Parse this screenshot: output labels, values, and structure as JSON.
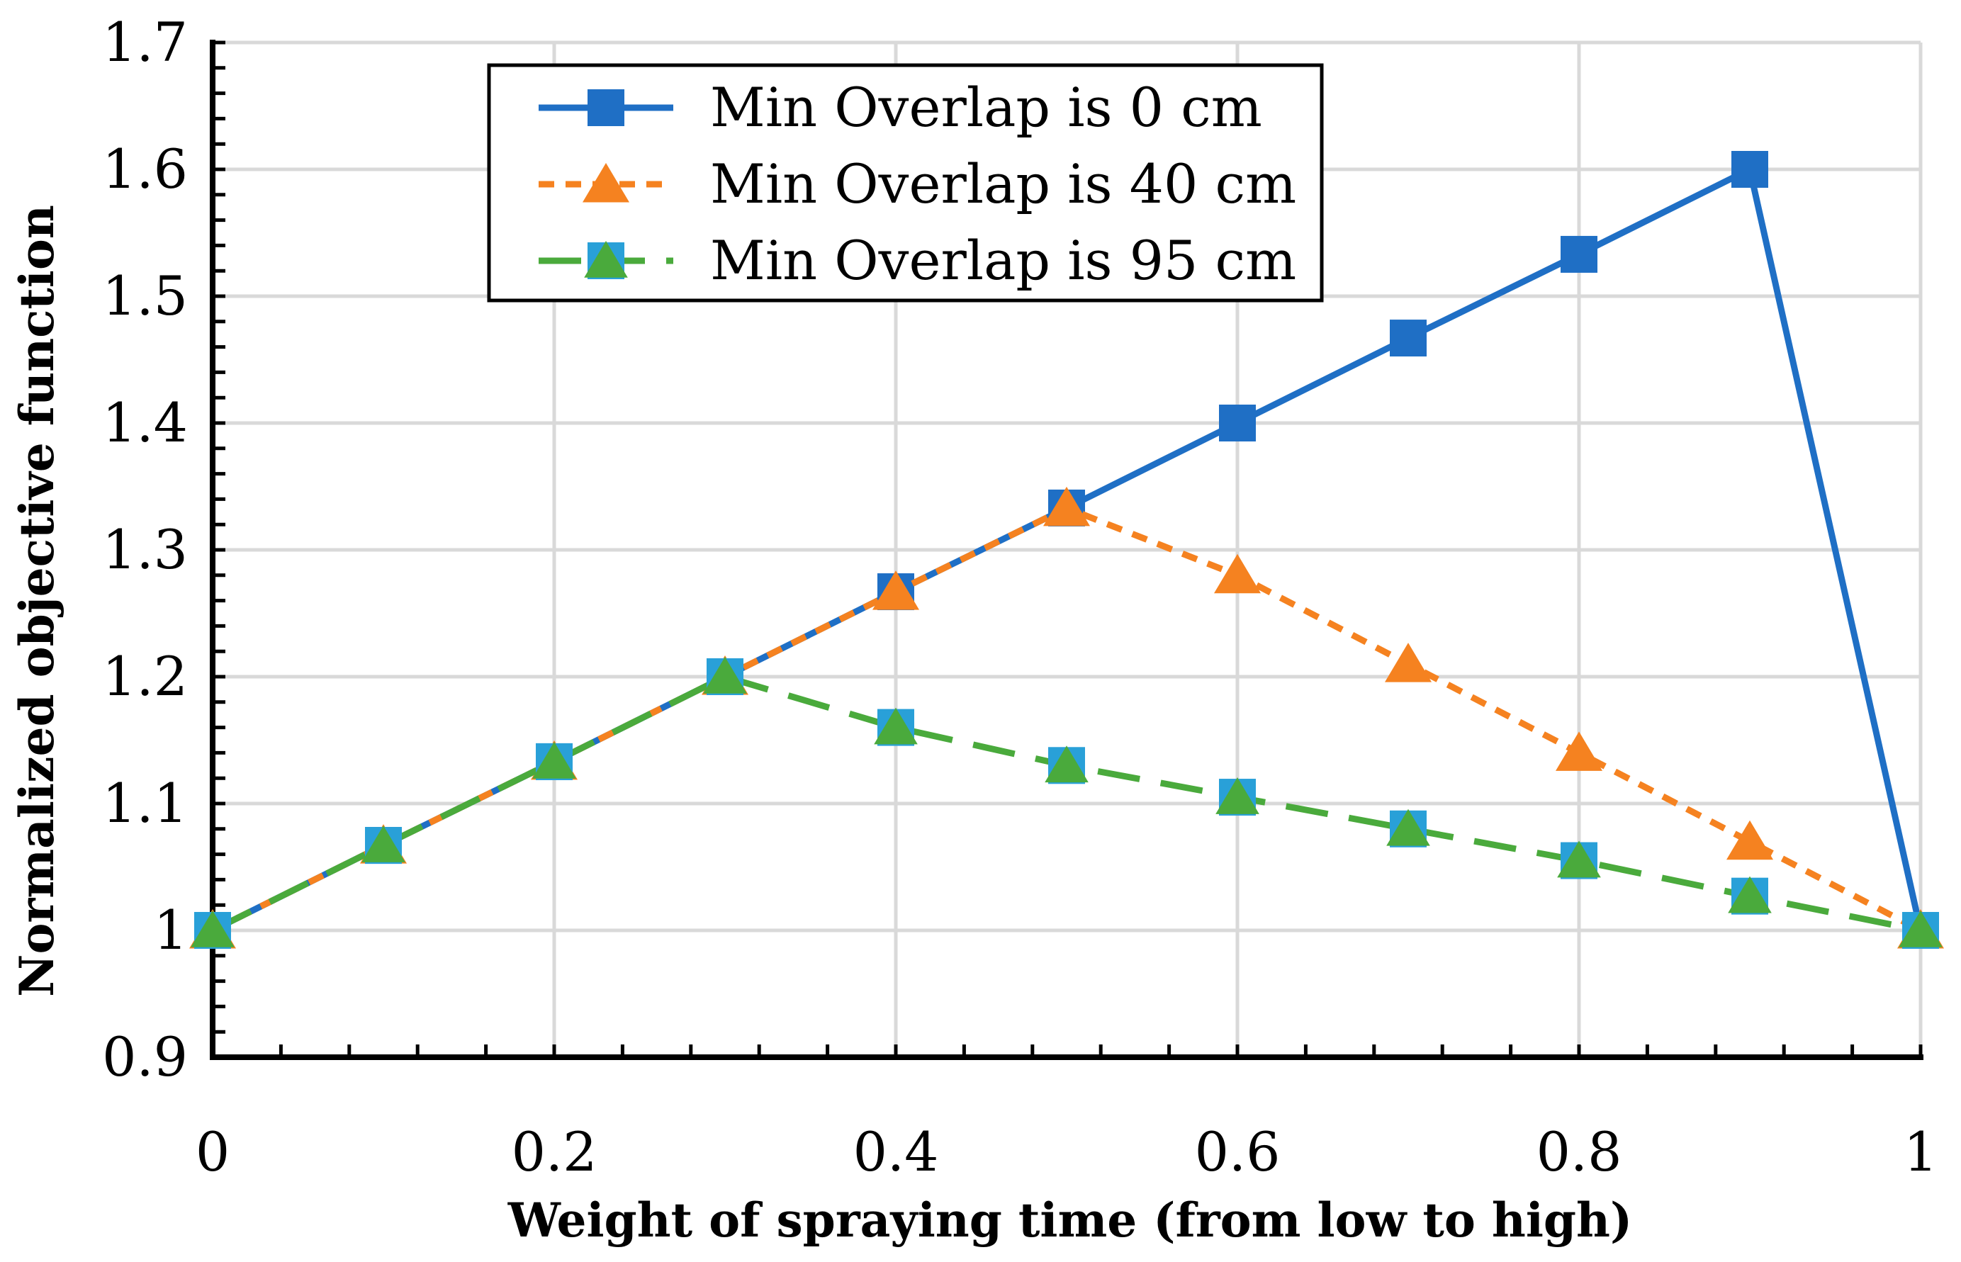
{
  "chart_data": {
    "type": "line",
    "title": "",
    "xlabel": "Weight of spraying time (from low to high)",
    "ylabel": "Normalized objective function",
    "x": [
      0,
      0.1,
      0.2,
      0.3,
      0.4,
      0.5,
      0.6,
      0.7,
      0.8,
      0.9,
      1
    ],
    "xlim": [
      0,
      1
    ],
    "ylim": [
      0.9,
      1.7
    ],
    "xticks": [
      0,
      0.2,
      0.4,
      0.6,
      0.8,
      1
    ],
    "xtick_labels": [
      "0",
      "0.2",
      "0.4",
      "0.6",
      "0.8",
      "1"
    ],
    "yticks": [
      0.9,
      1,
      1.1,
      1.2,
      1.3,
      1.4,
      1.5,
      1.6,
      1.7
    ],
    "ytick_labels": [
      "0.9",
      "1",
      "1.1",
      "1.2",
      "1.3",
      "1.4",
      "1.5",
      "1.6",
      "1.7"
    ],
    "grid": true,
    "legend_position": "top-center",
    "series": [
      {
        "name": "Min Overlap is 0 cm",
        "color": "#1f6fc5",
        "line_style": "solid",
        "marker": "square",
        "values": [
          1.0,
          1.067,
          1.133,
          1.2,
          1.267,
          1.333,
          1.4,
          1.467,
          1.533,
          1.6,
          1.0
        ]
      },
      {
        "name": "Min Overlap is 40 cm",
        "color": "#f58220",
        "line_style": "dashed",
        "marker": "triangle",
        "values": [
          1.0,
          1.067,
          1.133,
          1.2,
          1.267,
          1.333,
          1.28,
          1.21,
          1.14,
          1.07,
          1.0
        ]
      },
      {
        "name": "Min Overlap is 95 cm",
        "color": "#4aaa3c",
        "marker_color": "#29a0d8",
        "line_style": "long-dashed",
        "marker": "square-triangle",
        "values": [
          1.0,
          1.067,
          1.133,
          1.2,
          1.16,
          1.13,
          1.105,
          1.08,
          1.055,
          1.027,
          1.0
        ]
      }
    ]
  }
}
